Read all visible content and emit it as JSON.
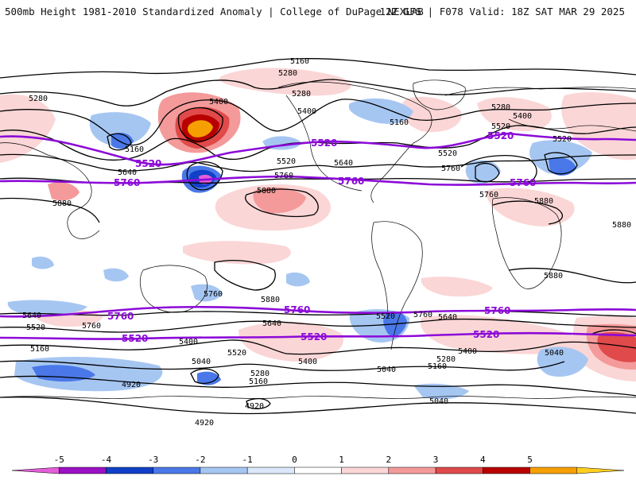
{
  "header": {
    "left_title": "500mb Height 1981-2010 Standardized Anomaly | College of DuPage NEXLAB",
    "right_title": "12Z GFS | F078 Valid: 18Z SAT MAR 29 2025"
  },
  "map": {
    "black_contour_labels": [
      "5160",
      "5280",
      "5280",
      "5400",
      "5280",
      "5400",
      "5160",
      "5280",
      "5400",
      "5520",
      "5160",
      "5640",
      "5520",
      "5640",
      "5520",
      "5520",
      "5640",
      "5760",
      "5760",
      "5880",
      "5880",
      "5280",
      "5400",
      "5520",
      "5160",
      "5880",
      "5880",
      "5880",
      "5760",
      "5880",
      "5640",
      "5520",
      "5760",
      "5760",
      "5520",
      "5640",
      "5400",
      "5520",
      "5640",
      "5160",
      "5400",
      "5400",
      "5040",
      "5280",
      "5040",
      "5160",
      "5280",
      "5160",
      "4920",
      "4920",
      "4920",
      "5040",
      "5040",
      "5040",
      "5760"
    ],
    "purple_contour_labels": [
      "5520",
      "5520",
      "5520",
      "5760",
      "5760",
      "5760",
      "5760",
      "5760",
      "5760",
      "5760",
      "5520",
      "5520",
      "5520"
    ],
    "colors": {
      "purple_contour": "#8c0ad8",
      "black_contour": "#000000",
      "coastline": "#000000"
    }
  },
  "colorbar": {
    "tick_labels": [
      "-5",
      "-4",
      "-3",
      "-2",
      "-1",
      "0",
      "1",
      "2",
      "3",
      "4",
      "5"
    ],
    "colors": [
      "#e45ed8",
      "#9a10c4",
      "#1040c8",
      "#4a78e8",
      "#a6c6f2",
      "#dbe8fa",
      "#ffffff",
      "#fbd6d6",
      "#f49a9a",
      "#e04a4a",
      "#b80000",
      "#f5a000",
      "#ffd020"
    ]
  }
}
